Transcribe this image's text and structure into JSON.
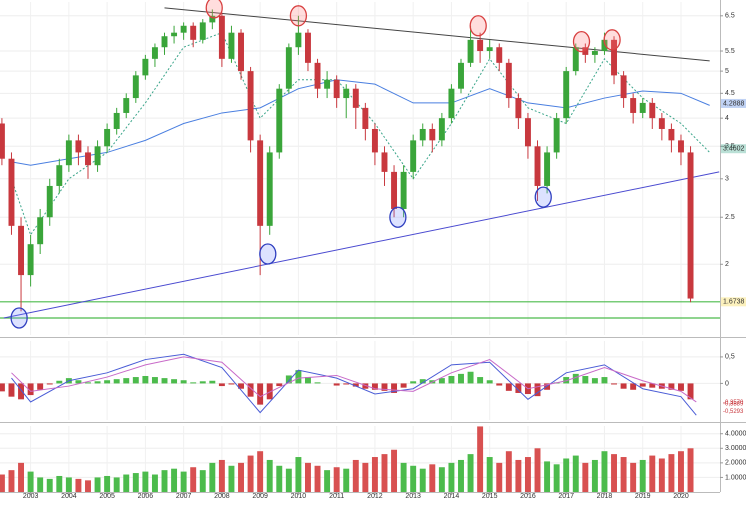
{
  "chart_data": [
    {
      "type": "candlestick",
      "log_scale": true,
      "grid": true,
      "up_color": "#3aa53a",
      "down_color": "#c8383e",
      "x": [
        2002.25,
        2002.5,
        2002.75,
        2003,
        2003.25,
        2003.5,
        2003.75,
        2004,
        2004.25,
        2004.5,
        2004.75,
        2005,
        2005.25,
        2005.5,
        2005.75,
        2006,
        2006.25,
        2006.5,
        2006.75,
        2007,
        2007.25,
        2007.5,
        2007.75,
        2008,
        2008.25,
        2008.5,
        2008.75,
        2009,
        2009.25,
        2009.5,
        2009.75,
        2010,
        2010.25,
        2010.5,
        2010.75,
        2011,
        2011.25,
        2011.5,
        2011.75,
        2012,
        2012.25,
        2012.5,
        2012.75,
        2013,
        2013.25,
        2013.5,
        2013.75,
        2014,
        2014.25,
        2014.5,
        2014.75,
        2015,
        2015.25,
        2015.5,
        2015.75,
        2016,
        2016.25,
        2016.5,
        2016.75,
        2017,
        2017.25,
        2017.5,
        2017.75,
        2018,
        2018.25,
        2018.5,
        2018.75,
        2019,
        2019.25,
        2019.5,
        2019.75,
        2020,
        2020.25
      ],
      "open": [
        3.9,
        3.3,
        2.4,
        1.9,
        2.2,
        2.5,
        2.9,
        3.2,
        3.6,
        3.4,
        3.2,
        3.5,
        3.8,
        4.1,
        4.4,
        4.9,
        5.3,
        5.6,
        5.9,
        6.0,
        6.2,
        5.8,
        6.3,
        6.5,
        5.3,
        6.0,
        5.0,
        3.6,
        2.4,
        3.4,
        4.6,
        5.6,
        6.0,
        5.2,
        4.6,
        4.8,
        4.4,
        4.6,
        4.2,
        3.8,
        3.4,
        3.1,
        2.6,
        3.1,
        3.6,
        3.8,
        3.6,
        4.0,
        4.6,
        5.2,
        5.8,
        5.5,
        5.6,
        5.2,
        4.4,
        4.0,
        3.5,
        2.9,
        3.4,
        4.0,
        5.0,
        5.6,
        5.4,
        5.5,
        5.8,
        4.9,
        4.4,
        4.1,
        4.3,
        4.0,
        3.8,
        3.6,
        3.4
      ],
      "high": [
        4.0,
        3.4,
        2.5,
        2.3,
        2.6,
        3.0,
        3.3,
        3.7,
        3.7,
        3.5,
        3.6,
        3.9,
        4.2,
        4.5,
        5.0,
        5.4,
        5.7,
        6.0,
        6.2,
        6.3,
        6.3,
        6.4,
        6.7,
        6.6,
        6.2,
        6.1,
        5.1,
        3.7,
        3.5,
        4.7,
        5.7,
        6.5,
        6.1,
        5.3,
        5.0,
        4.9,
        4.7,
        4.7,
        4.3,
        3.9,
        3.5,
        3.2,
        3.2,
        3.7,
        3.9,
        3.9,
        4.1,
        4.7,
        5.3,
        6.2,
        6.0,
        5.8,
        5.7,
        5.3,
        4.5,
        4.1,
        3.6,
        3.5,
        4.1,
        5.1,
        5.7,
        5.7,
        5.6,
        6.0,
        5.9,
        5.0,
        4.5,
        4.4,
        4.4,
        4.1,
        3.9,
        3.7,
        3.5
      ],
      "low": [
        3.2,
        2.3,
        1.6,
        1.8,
        2.1,
        2.4,
        2.8,
        3.1,
        3.2,
        3.0,
        3.1,
        3.4,
        3.7,
        4.0,
        4.3,
        4.8,
        5.1,
        5.4,
        5.7,
        5.8,
        5.6,
        5.7,
        6.1,
        5.1,
        5.2,
        4.8,
        3.4,
        1.9,
        2.3,
        3.3,
        4.5,
        5.4,
        5.0,
        4.4,
        4.4,
        4.2,
        4.0,
        3.8,
        3.6,
        3.2,
        2.9,
        2.5,
        2.5,
        3.0,
        3.5,
        3.4,
        3.5,
        3.9,
        4.5,
        5.1,
        5.2,
        5.3,
        5.0,
        4.2,
        3.8,
        3.3,
        2.7,
        2.8,
        3.3,
        3.9,
        4.9,
        5.2,
        5.2,
        5.4,
        4.7,
        4.2,
        3.9,
        4.0,
        3.8,
        3.6,
        3.4,
        3.2,
        1.67
      ],
      "close": [
        3.3,
        2.4,
        1.9,
        2.2,
        2.5,
        2.9,
        3.2,
        3.6,
        3.4,
        3.2,
        3.5,
        3.8,
        4.1,
        4.4,
        4.9,
        5.3,
        5.6,
        5.9,
        6.0,
        6.2,
        5.8,
        6.3,
        6.5,
        5.3,
        6.0,
        5.0,
        3.6,
        2.4,
        3.4,
        4.6,
        5.6,
        6.0,
        5.2,
        4.6,
        4.8,
        4.4,
        4.6,
        4.2,
        3.8,
        3.4,
        3.1,
        2.6,
        3.1,
        3.6,
        3.8,
        3.6,
        4.0,
        4.6,
        5.2,
        5.8,
        5.5,
        5.6,
        5.2,
        4.4,
        4.0,
        3.5,
        2.9,
        3.4,
        4.0,
        5.0,
        5.6,
        5.4,
        5.5,
        5.8,
        4.9,
        4.4,
        4.1,
        4.3,
        4.0,
        3.8,
        3.6,
        3.4,
        1.7
      ],
      "lines": [
        {
          "style": "solid",
          "color": "#4a7fe0",
          "x": [
            2002.5,
            2003,
            2004,
            2005,
            2006,
            2007,
            2008,
            2009,
            2010,
            2011,
            2012,
            2013,
            2014,
            2015,
            2016,
            2017,
            2018,
            2019,
            2020,
            2020.75
          ],
          "values": [
            3.25,
            3.2,
            3.3,
            3.4,
            3.6,
            3.9,
            4.1,
            4.2,
            4.6,
            4.8,
            4.7,
            4.3,
            4.3,
            4.6,
            4.3,
            4.2,
            4.4,
            4.55,
            4.5,
            4.25
          ]
        },
        {
          "style": "dashed",
          "color": "#3aa58a",
          "x": [
            2002.5,
            2003,
            2004,
            2005,
            2006,
            2007,
            2008,
            2009,
            2010,
            2011,
            2012,
            2013,
            2014,
            2015,
            2016,
            2017,
            2018,
            2019,
            2020,
            2020.75
          ],
          "values": [
            3.0,
            2.3,
            3.0,
            3.4,
            4.3,
            5.6,
            6.0,
            4.0,
            4.8,
            4.8,
            3.9,
            3.0,
            3.9,
            5.3,
            4.2,
            3.9,
            5.3,
            4.4,
            3.9,
            3.4
          ]
        }
      ],
      "trend_lines": [
        {
          "color": "#444444",
          "x": [
            2006.5,
            2020.75
          ],
          "values": [
            6.75,
            5.25
          ]
        },
        {
          "color": "#4a4ad0",
          "x": [
            2002.3,
            2021
          ],
          "values": [
            1.55,
            3.1
          ]
        }
      ],
      "hlines": [
        {
          "value": 1.6738,
          "color": "#4cbb4c"
        },
        {
          "value": 1.55,
          "color": "#4cbb4c"
        }
      ],
      "circled_points": [
        {
          "x": 2007.8,
          "y": 6.75,
          "color": "#d84040"
        },
        {
          "x": 2010,
          "y": 6.5,
          "color": "#d84040"
        },
        {
          "x": 2014.7,
          "y": 6.2,
          "color": "#d84040"
        },
        {
          "x": 2017.4,
          "y": 5.75,
          "color": "#d84040"
        },
        {
          "x": 2018.2,
          "y": 5.8,
          "color": "#d84040"
        },
        {
          "x": 2002.7,
          "y": 1.55,
          "color": "#3040c0"
        },
        {
          "x": 2009.2,
          "y": 2.1,
          "color": "#3040c0"
        },
        {
          "x": 2012.6,
          "y": 2.5,
          "color": "#3040c0"
        },
        {
          "x": 2016.4,
          "y": 2.75,
          "color": "#3040c0"
        }
      ],
      "levels": [
        4.2888,
        3.4602,
        1.6738
      ],
      "level_colors": [
        "#4a7fe0",
        "#3aa58a",
        "#f5d742"
      ],
      "xlim": [
        2002.2,
        2021.02
      ],
      "ylim": [
        6.94,
        1.43
      ],
      "yticks": [
        2,
        2.5,
        3,
        3.5,
        4,
        4.5,
        5,
        5.5,
        6.5
      ]
    },
    {
      "type": "macd",
      "grid": true,
      "pos_color": "#4cbb4c",
      "neg_color": "#c8383e",
      "x": [
        2002.25,
        2002.5,
        2002.75,
        2003,
        2003.25,
        2003.5,
        2003.75,
        2004,
        2004.25,
        2004.5,
        2004.75,
        2005,
        2005.25,
        2005.5,
        2005.75,
        2006,
        2006.25,
        2006.5,
        2006.75,
        2007,
        2007.25,
        2007.5,
        2007.75,
        2008,
        2008.25,
        2008.5,
        2008.75,
        2009,
        2009.25,
        2009.5,
        2009.75,
        2010,
        2010.25,
        2010.5,
        2010.75,
        2011,
        2011.25,
        2011.5,
        2011.75,
        2012,
        2012.25,
        2012.5,
        2012.75,
        2013,
        2013.25,
        2013.5,
        2013.75,
        2014,
        2014.25,
        2014.5,
        2014.75,
        2015,
        2015.25,
        2015.5,
        2015.75,
        2016,
        2016.25,
        2016.5,
        2016.75,
        2017,
        2017.25,
        2017.5,
        2017.75,
        2018,
        2018.25,
        2018.5,
        2018.75,
        2019,
        2019.25,
        2019.5,
        2019.75,
        2020,
        2020.25
      ],
      "values": [
        -0.15,
        -0.25,
        -0.3,
        -0.22,
        -0.12,
        -0.02,
        0.05,
        0.1,
        0.06,
        0.02,
        0.04,
        0.06,
        0.08,
        0.1,
        0.12,
        0.14,
        0.12,
        0.1,
        0.08,
        0.06,
        0.02,
        0.04,
        0.05,
        -0.05,
        -0.02,
        -0.1,
        -0.25,
        -0.4,
        -0.3,
        -0.05,
        0.15,
        0.25,
        0.12,
        0.02,
        0.0,
        -0.04,
        -0.02,
        -0.06,
        -0.1,
        -0.12,
        -0.14,
        -0.18,
        -0.08,
        0.04,
        0.08,
        0.06,
        0.1,
        0.14,
        0.18,
        0.22,
        0.12,
        0.06,
        -0.04,
        -0.14,
        -0.18,
        -0.2,
        -0.24,
        -0.12,
        0.02,
        0.12,
        0.18,
        0.14,
        0.1,
        0.12,
        -0.02,
        -0.1,
        -0.12,
        -0.06,
        -0.08,
        -0.1,
        -0.12,
        -0.14,
        -0.3
      ],
      "lines": [
        {
          "color": "#4a5cd6",
          "x": [
            2002.5,
            2003,
            2004,
            2005,
            2006,
            2007,
            2008,
            2009,
            2010,
            2011,
            2012,
            2013,
            2014,
            2015,
            2016,
            2017,
            2018,
            2019,
            2020,
            2020.4
          ],
          "values": [
            0.1,
            -0.35,
            0.05,
            0.2,
            0.45,
            0.55,
            0.3,
            -0.55,
            0.25,
            0.1,
            -0.2,
            -0.1,
            0.35,
            0.4,
            -0.3,
            0.2,
            0.35,
            -0.1,
            -0.25,
            -0.6
          ]
        },
        {
          "color": "#c86ac8",
          "x": [
            2002.5,
            2003,
            2004,
            2005,
            2006,
            2007,
            2008,
            2009,
            2010,
            2011,
            2012,
            2013,
            2014,
            2015,
            2016,
            2017,
            2018,
            2019,
            2020,
            2020.4
          ],
          "values": [
            0.2,
            -0.15,
            -0.05,
            0.12,
            0.35,
            0.5,
            0.4,
            -0.25,
            0.1,
            0.15,
            -0.1,
            -0.15,
            0.2,
            0.45,
            -0.1,
            0.05,
            0.3,
            0.05,
            -0.15,
            -0.35
          ]
        }
      ],
      "levels": [
        {
          "value": -0.357,
          "label": "-0,3570"
        },
        {
          "value": -0.3889,
          "label": "-0,3889"
        },
        {
          "value": -0.5293,
          "label": "-0,5293"
        }
      ],
      "xlim": [
        2002.2,
        2021.02
      ],
      "ylim": [
        -0.69,
        0.8
      ],
      "yticks": [
        {
          "value": 0.5,
          "label": "0,5"
        },
        0
      ]
    },
    {
      "type": "volume",
      "grid": true,
      "up_color": "#4cbb4c",
      "down_color": "#d85050",
      "x": [
        2002.25,
        2002.5,
        2002.75,
        2003,
        2003.25,
        2003.5,
        2003.75,
        2004,
        2004.25,
        2004.5,
        2004.75,
        2005,
        2005.25,
        2005.5,
        2005.75,
        2006,
        2006.25,
        2006.5,
        2006.75,
        2007,
        2007.25,
        2007.5,
        2007.75,
        2008,
        2008.25,
        2008.5,
        2008.75,
        2009,
        2009.25,
        2009.5,
        2009.75,
        2010,
        2010.25,
        2010.5,
        2010.75,
        2011,
        2011.25,
        2011.5,
        2011.75,
        2012,
        2012.25,
        2012.5,
        2012.75,
        2013,
        2013.25,
        2013.5,
        2013.75,
        2014,
        2014.25,
        2014.5,
        2014.75,
        2015,
        2015.25,
        2015.5,
        2015.75,
        2016,
        2016.25,
        2016.5,
        2016.75,
        2017,
        2017.25,
        2017.5,
        2017.75,
        2018,
        2018.25,
        2018.5,
        2018.75,
        2019,
        2019.25,
        2019.5,
        2019.75,
        2020,
        2020.25
      ],
      "values": [
        1200000,
        1500000,
        2000000,
        1400000,
        1000000,
        900000,
        1100000,
        1000000,
        900000,
        800000,
        1000000,
        1100000,
        1000000,
        1200000,
        1300000,
        1400000,
        1200000,
        1500000,
        1600000,
        1400000,
        1700000,
        1500000,
        2000000,
        2200000,
        1800000,
        2000000,
        2500000,
        2800000,
        2200000,
        1800000,
        1600000,
        2400000,
        2000000,
        1800000,
        1500000,
        1700000,
        1600000,
        2200000,
        2000000,
        2400000,
        2600000,
        2900000,
        2000000,
        1800000,
        1600000,
        1900000,
        1700000,
        2000000,
        2200000,
        2600000,
        4500000,
        2400000,
        2000000,
        2800000,
        2200000,
        2400000,
        3000000,
        2100000,
        1900000,
        2300000,
        2500000,
        2000000,
        2200000,
        2800000,
        2600000,
        2400000,
        2000000,
        2200000,
        2500000,
        2300000,
        2600000,
        2800000,
        3000000
      ],
      "xlim": [
        2002.2,
        2021.02
      ],
      "ylim": [
        0,
        4530000
      ],
      "yticks": [
        {
          "value": 1000000,
          "label": "1.0000M"
        },
        {
          "value": 2000000,
          "label": "2.0000M"
        },
        {
          "value": 3000000,
          "label": "3.0000M"
        },
        {
          "value": 4000000,
          "label": "4.0000M"
        }
      ],
      "xticks": [
        2003,
        2004,
        2005,
        2006,
        2007,
        2008,
        2009,
        2010,
        2011,
        2012,
        2013,
        2014,
        2015,
        2016,
        2017,
        2018,
        2019,
        2020
      ]
    }
  ]
}
